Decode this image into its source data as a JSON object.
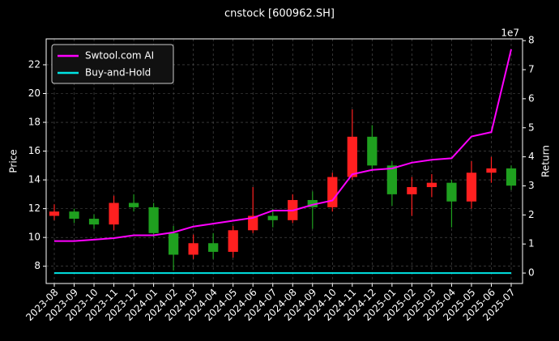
{
  "chart_data": {
    "type": "candlestick",
    "title": "cnstock [600962.SH]",
    "ylabel": "Price",
    "y2label": "Return",
    "y2_offset_label": "1e7",
    "categories": [
      "2023-08",
      "2023-09",
      "2023-10",
      "2023-11",
      "2023-12",
      "2024-01",
      "2024-02",
      "2024-03",
      "2024-04",
      "2024-05",
      "2024-06",
      "2024-07",
      "2024-08",
      "2024-09",
      "2024-10",
      "2024-11",
      "2024-12",
      "2025-01",
      "2025-02",
      "2025-03",
      "2025-04",
      "2025-05",
      "2025-06",
      "2025-07"
    ],
    "open": [
      11.5,
      11.8,
      11.3,
      10.9,
      12.4,
      12.1,
      10.3,
      8.8,
      9.6,
      9.0,
      10.5,
      11.5,
      11.2,
      12.6,
      12.1,
      14.2,
      17.0,
      15.0,
      13.0,
      13.5,
      13.8,
      12.5,
      14.5,
      14.8
    ],
    "high": [
      12.3,
      12.0,
      11.6,
      12.9,
      13.0,
      12.4,
      10.8,
      10.2,
      10.3,
      10.8,
      13.5,
      12.0,
      13.0,
      13.2,
      14.5,
      18.9,
      17.8,
      15.3,
      14.2,
      14.4,
      14.0,
      15.3,
      15.6,
      15.0
    ],
    "low": [
      11.2,
      11.0,
      10.6,
      10.5,
      11.8,
      10.0,
      7.7,
      8.5,
      8.5,
      8.6,
      10.3,
      10.7,
      11.0,
      10.6,
      11.8,
      14.0,
      14.6,
      12.2,
      11.5,
      12.8,
      10.7,
      12.0,
      13.8,
      13.3
    ],
    "close": [
      11.8,
      11.3,
      10.9,
      12.4,
      12.1,
      10.3,
      8.8,
      9.6,
      9.0,
      10.5,
      11.5,
      11.2,
      12.6,
      12.1,
      14.2,
      17.0,
      15.0,
      13.0,
      13.5,
      13.8,
      12.5,
      14.5,
      14.8,
      13.6
    ],
    "up_color": "#ff2020",
    "down_color": "#1fa01f",
    "series": [
      {
        "name": "Swtool.com AI",
        "color": "#ff00ff",
        "axis": "y2",
        "values": [
          1.1,
          1.1,
          1.15,
          1.2,
          1.3,
          1.3,
          1.4,
          1.6,
          1.7,
          1.8,
          1.9,
          2.15,
          2.15,
          2.35,
          2.5,
          3.4,
          3.55,
          3.6,
          3.8,
          3.9,
          3.95,
          4.7,
          4.85,
          7.7
        ]
      },
      {
        "name": "Buy-and-Hold",
        "color": "#00e5e5",
        "axis": "y2",
        "values": [
          0,
          0,
          0,
          0,
          0,
          0,
          0,
          0,
          0,
          0,
          0,
          0,
          0,
          0,
          0,
          0,
          0,
          0,
          0,
          0,
          0,
          0,
          0,
          0
        ]
      }
    ],
    "ylim": [
      6.8,
      23.8
    ],
    "yticks": [
      8,
      10,
      12,
      14,
      16,
      18,
      20,
      22
    ],
    "y2lim": [
      -0.36,
      8.06
    ],
    "y2ticks": [
      0,
      1,
      2,
      3,
      4,
      5,
      6,
      7,
      8
    ],
    "grid": true,
    "legend": "upper left"
  }
}
